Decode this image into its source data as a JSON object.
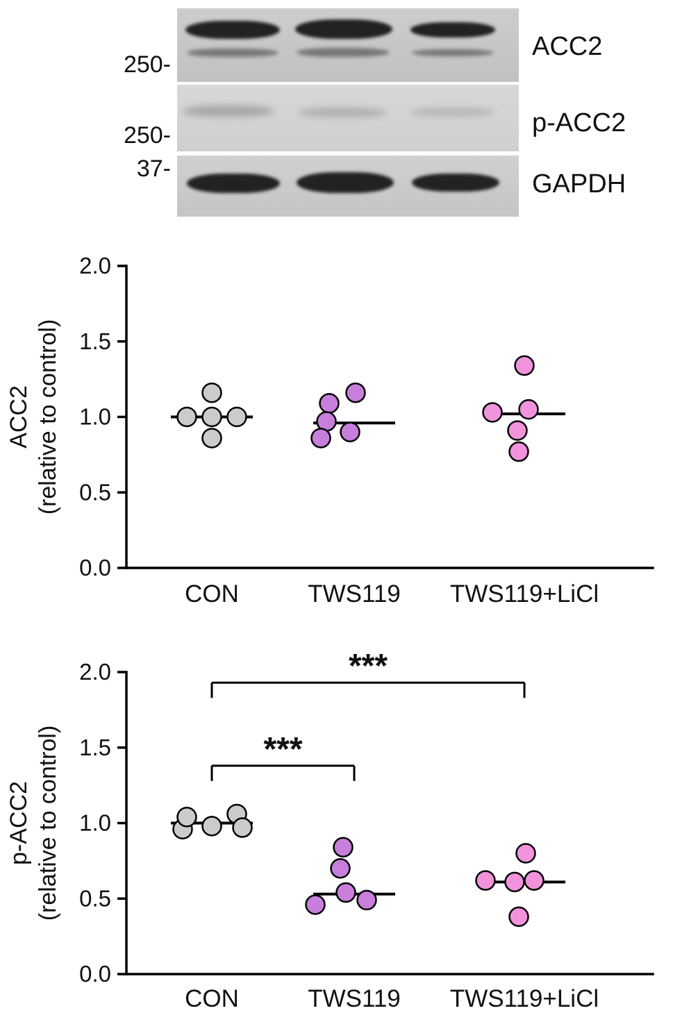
{
  "blot": {
    "panels": [
      {
        "label": "ACC2",
        "marker": "250-"
      },
      {
        "label": "p-ACC2",
        "marker": "250-"
      },
      {
        "label": "GAPDH",
        "marker": "37-"
      }
    ]
  },
  "colors": {
    "con_fill": "#cbcbcb",
    "tws119_fill": "#c77fdb",
    "tws119_licl_fill": "#f093dc",
    "axis": "#000000"
  },
  "chart_data": [
    {
      "type": "scatter",
      "title": "",
      "ylabel_lines": [
        "ACC2",
        "(relative to control)"
      ],
      "xlabel": "",
      "categories": [
        "CON",
        "TWS119",
        "TWS119+LiCl"
      ],
      "ylim": [
        0.0,
        2.0
      ],
      "yticks": [
        0.0,
        0.5,
        1.0,
        1.5,
        2.0
      ],
      "grid": false,
      "legend": "none",
      "series": [
        {
          "name": "CON",
          "color": "#cbcbcb",
          "median": 1.0,
          "values": [
            1.16,
            1.0,
            1.0,
            1.0,
            0.86
          ],
          "offsets": [
            0,
            -36,
            0,
            36,
            0
          ]
        },
        {
          "name": "TWS119",
          "color": "#c77fdb",
          "median": 0.96,
          "values": [
            1.09,
            1.16,
            0.97,
            0.86,
            0.9
          ],
          "offsets": [
            -36,
            2,
            -40,
            -48,
            -6
          ]
        },
        {
          "name": "TWS119+LiCl",
          "color": "#f093dc",
          "median": 1.02,
          "values": [
            1.34,
            1.03,
            1.05,
            0.91,
            0.77
          ],
          "offsets": [
            0,
            -46,
            6,
            -10,
            -8
          ]
        }
      ],
      "annotations": []
    },
    {
      "type": "scatter",
      "title": "",
      "ylabel_lines": [
        "p-ACC2",
        "(relative to control)"
      ],
      "xlabel": "",
      "categories": [
        "CON",
        "TWS119",
        "TWS119+LiCl"
      ],
      "ylim": [
        0.0,
        2.0
      ],
      "yticks": [
        0.0,
        0.5,
        1.0,
        1.5,
        2.0
      ],
      "grid": false,
      "legend": "none",
      "series": [
        {
          "name": "CON",
          "color": "#cbcbcb",
          "median": 1.0,
          "values": [
            0.96,
            1.04,
            0.98,
            1.06,
            0.97
          ],
          "offsets": [
            -42,
            -36,
            0,
            36,
            44
          ]
        },
        {
          "name": "TWS119",
          "color": "#c77fdb",
          "median": 0.53,
          "values": [
            0.84,
            0.7,
            0.54,
            0.46,
            0.49
          ],
          "offsets": [
            -16,
            -20,
            -12,
            -56,
            18
          ]
        },
        {
          "name": "TWS119+LiCl",
          "color": "#f093dc",
          "median": 0.61,
          "values": [
            0.8,
            0.62,
            0.62,
            0.61,
            0.38
          ],
          "offsets": [
            2,
            -56,
            14,
            -14,
            -8
          ]
        }
      ],
      "annotations": [
        {
          "label": "***",
          "from": "CON",
          "to": "TWS119",
          "y": 1.38
        },
        {
          "label": "***",
          "from": "CON",
          "to": "TWS119+LiCl",
          "y": 1.93
        }
      ]
    }
  ]
}
